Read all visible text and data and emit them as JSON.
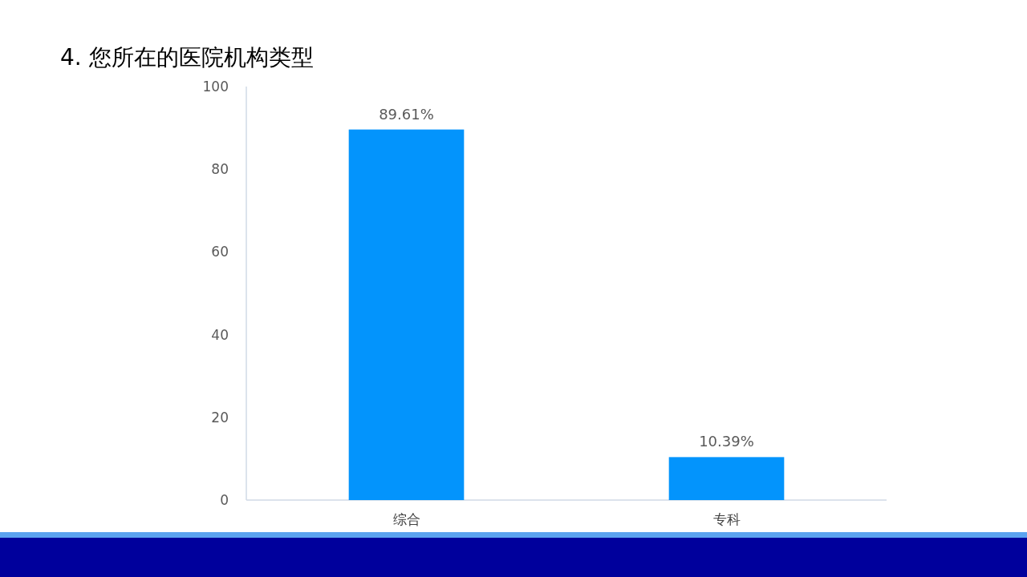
{
  "chart_data": {
    "type": "bar",
    "title": "4. 您所在的医院机构类型",
    "categories": [
      "综合",
      "专科"
    ],
    "values": [
      89.61,
      10.39
    ],
    "value_labels": [
      "89.61%",
      "10.39%"
    ],
    "color": "#0394fc",
    "ylim": [
      0,
      100
    ],
    "yticks": [
      0,
      20,
      40,
      60,
      80,
      100
    ]
  }
}
